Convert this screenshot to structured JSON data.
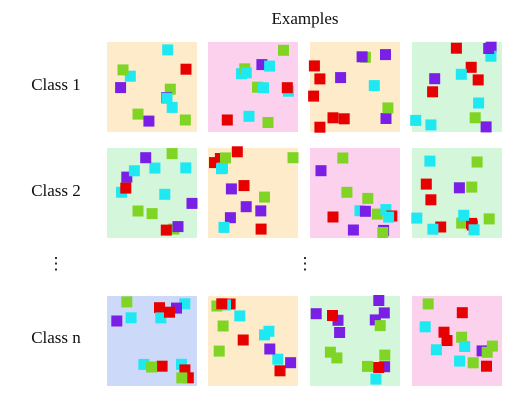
{
  "header": {
    "title": "Examples"
  },
  "rows": [
    {
      "label": "Class 1"
    },
    {
      "label": "Class 2"
    },
    {
      "label": "Class n"
    }
  ],
  "ellipsis": {
    "label": "⋮",
    "examples": "⋮"
  }
}
